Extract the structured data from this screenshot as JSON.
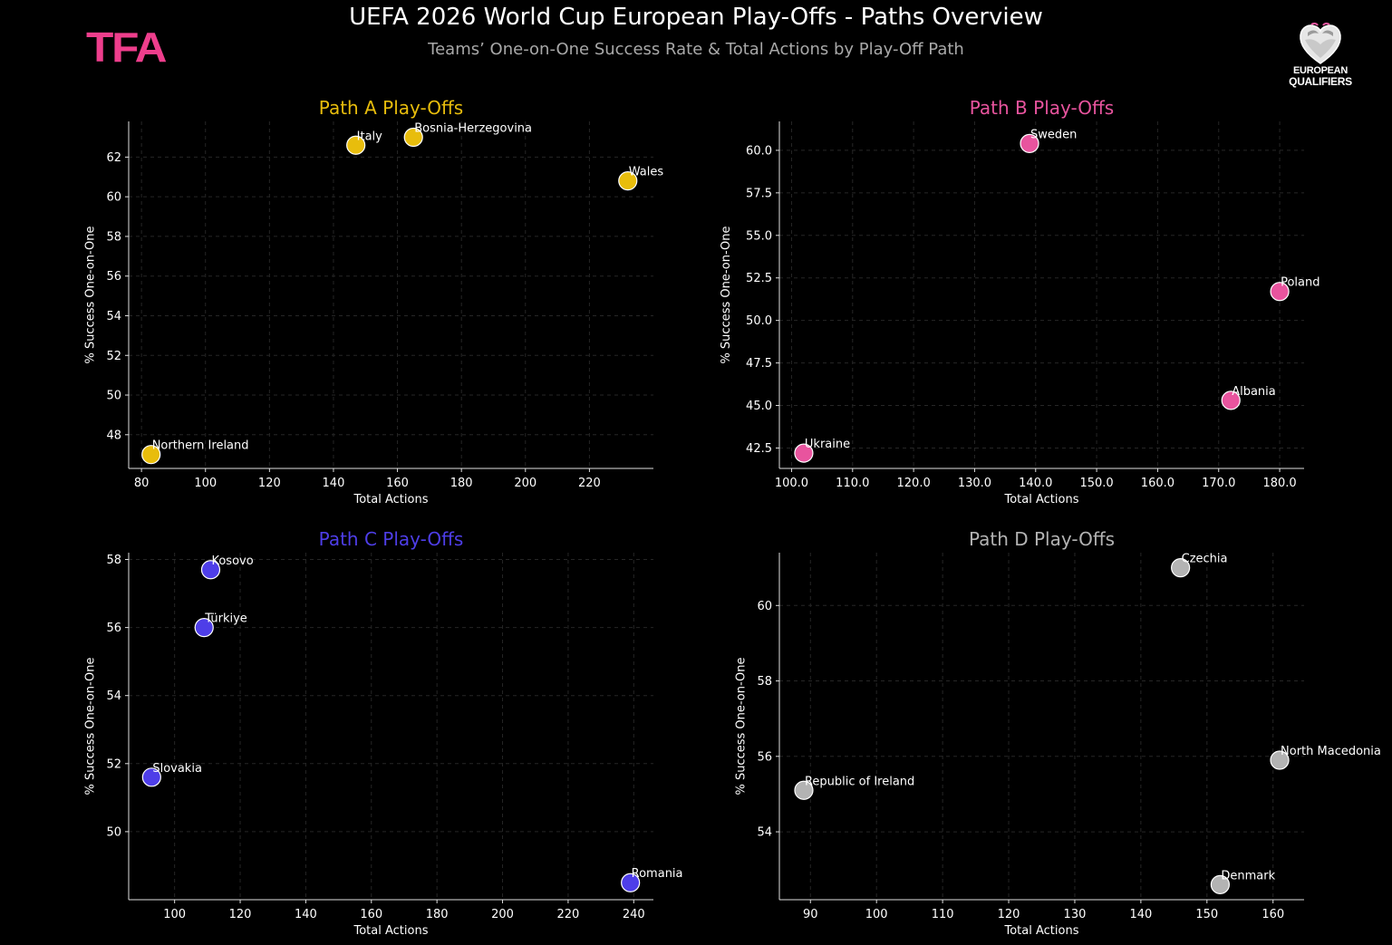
{
  "header": {
    "title": "UEFA 2026 World Cup European Play-Offs - Paths Overview",
    "subtitle": "Teams’ One-on-One Success Rate & Total Actions by Play-Off Path",
    "brand_logo_text": "TFA",
    "brand_color": "#ee3e8c",
    "partner_logo_text_line1": "EUROPEAN",
    "partner_logo_text_line2": "QUALIFIERS"
  },
  "chart_data": [
    {
      "type": "scatter",
      "title": "Path A Play-Offs",
      "color": "#e8bd0c",
      "xlabel": "Total Actions",
      "ylabel": "% Success One-on-One",
      "xlim": [
        76,
        240
      ],
      "ylim": [
        46.3,
        63.8
      ],
      "xticks": [
        80,
        100,
        120,
        140,
        160,
        180,
        200,
        220
      ],
      "yticks": [
        48,
        50,
        52,
        54,
        56,
        58,
        60,
        62
      ],
      "tick_decimals": 0,
      "grid": true,
      "points": [
        {
          "label": "Italy",
          "x": 147,
          "y": 62.6
        },
        {
          "label": "Bosnia-Herzegovina",
          "x": 165,
          "y": 63.0
        },
        {
          "label": "Wales",
          "x": 232,
          "y": 60.8
        },
        {
          "label": "Northern Ireland",
          "x": 83,
          "y": 47.0
        }
      ]
    },
    {
      "type": "scatter",
      "title": "Path B Play-Offs",
      "color": "#e8549e",
      "xlabel": "Total Actions",
      "ylabel": "% Success One-on-One",
      "xlim": [
        98,
        184
      ],
      "ylim": [
        41.3,
        61.7
      ],
      "xticks": [
        100,
        110,
        120,
        130,
        140,
        150,
        160,
        170,
        180
      ],
      "yticks": [
        42.5,
        45.0,
        47.5,
        50.0,
        52.5,
        55.0,
        57.5,
        60.0
      ],
      "tick_decimals": 1,
      "grid": true,
      "points": [
        {
          "label": "Sweden",
          "x": 139,
          "y": 60.4
        },
        {
          "label": "Poland",
          "x": 180,
          "y": 51.7
        },
        {
          "label": "Albania",
          "x": 172,
          "y": 45.3
        },
        {
          "label": "Ukraine",
          "x": 102,
          "y": 42.2
        }
      ]
    },
    {
      "type": "scatter",
      "title": "Path C Play-Offs",
      "color": "#4e3ee8",
      "xlabel": "Total Actions",
      "ylabel": "% Success One-on-One",
      "xlim": [
        86,
        246
      ],
      "ylim": [
        48.0,
        58.2
      ],
      "xticks": [
        100,
        120,
        140,
        160,
        180,
        200,
        220,
        240
      ],
      "yticks": [
        50,
        52,
        54,
        56,
        58
      ],
      "tick_decimals": 0,
      "grid": true,
      "points": [
        {
          "label": "Kosovo",
          "x": 111,
          "y": 57.7
        },
        {
          "label": "Türkiye",
          "x": 109,
          "y": 56.0
        },
        {
          "label": "Slovakia",
          "x": 93,
          "y": 51.6
        },
        {
          "label": "Romania",
          "x": 239,
          "y": 48.5
        }
      ]
    },
    {
      "type": "scatter",
      "title": "Path D Play-Offs",
      "color": "#b3b3b3",
      "xlabel": "Total Actions",
      "ylabel": "% Success One-on-One",
      "xlim": [
        85.3,
        164.7
      ],
      "ylim": [
        52.2,
        61.4
      ],
      "xticks": [
        90,
        100,
        110,
        120,
        130,
        140,
        150,
        160
      ],
      "yticks": [
        54,
        56,
        58,
        60
      ],
      "tick_decimals": 0,
      "grid": true,
      "points": [
        {
          "label": "Czechia",
          "x": 146,
          "y": 61.0
        },
        {
          "label": "North Macedonia",
          "x": 161,
          "y": 55.9
        },
        {
          "label": "Republic of Ireland",
          "x": 89,
          "y": 55.1
        },
        {
          "label": "Denmark",
          "x": 152,
          "y": 52.6
        }
      ]
    }
  ]
}
